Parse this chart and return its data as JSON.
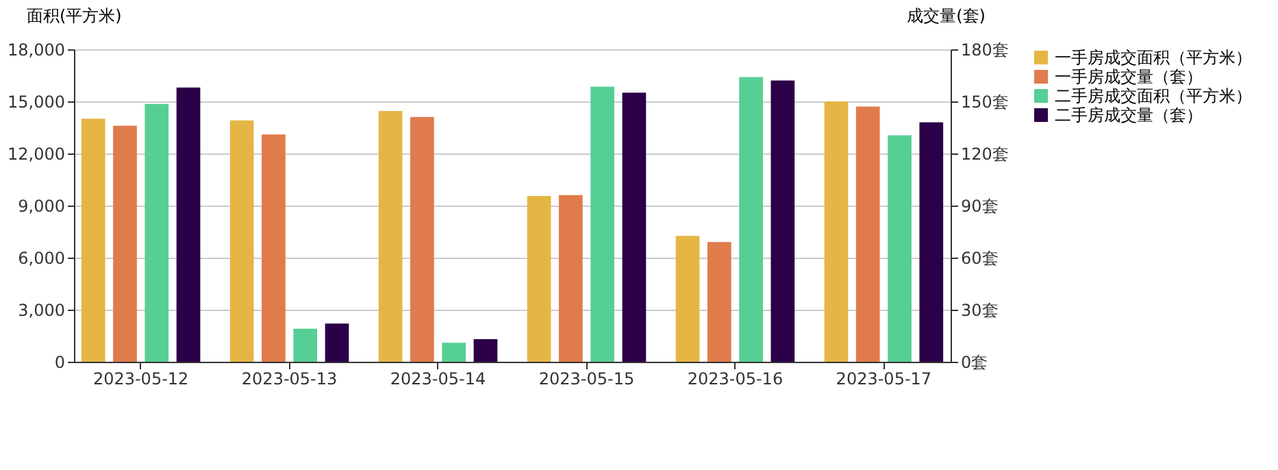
{
  "chart_data": {
    "type": "bar",
    "ylabel": "面积(平方米)",
    "y2label": "成交量(套)",
    "categories": [
      "2023-05-12",
      "2023-05-13",
      "2023-05-14",
      "2023-05-15",
      "2023-05-16",
      "2023-05-17"
    ],
    "series": [
      {
        "name": "一手房成交面积（平方米）",
        "color": "#e5b645",
        "values": [
          14000,
          13900,
          14450,
          9550,
          7250,
          15000
        ]
      },
      {
        "name": "一手房成交量（套）",
        "color": "#e07b4c",
        "axis": "y2",
        "values": [
          136,
          131,
          141,
          96,
          69,
          147
        ]
      },
      {
        "name": "二手房成交面积（平方米）",
        "color": "#56cf95",
        "values": [
          14850,
          1900,
          1100,
          15850,
          16400,
          13050
        ]
      },
      {
        "name": "二手房成交量（套）",
        "color": "#2b0048",
        "axis": "y2",
        "values": [
          158,
          22,
          13,
          155,
          162,
          138
        ]
      }
    ],
    "ylim": [
      0,
      18000
    ],
    "yticks": [
      {
        "value": 0,
        "label": "0"
      },
      {
        "value": 3000,
        "label": "3,000"
      },
      {
        "value": 6000,
        "label": "6,000"
      },
      {
        "value": 9000,
        "label": "9,000"
      },
      {
        "value": 12000,
        "label": "12,000"
      },
      {
        "value": 15000,
        "label": "15,000"
      },
      {
        "value": 18000,
        "label": "18,000"
      }
    ],
    "y2lim": [
      0,
      180
    ],
    "y2ticks": [
      {
        "value": 0,
        "label": "0套"
      },
      {
        "value": 30,
        "label": "30套"
      },
      {
        "value": 60,
        "label": "60套"
      },
      {
        "value": 90,
        "label": "90套"
      },
      {
        "value": 120,
        "label": "120套"
      },
      {
        "value": 150,
        "label": "150套"
      },
      {
        "value": 180,
        "label": "180套"
      }
    ],
    "grid": "y",
    "legend": "right"
  }
}
